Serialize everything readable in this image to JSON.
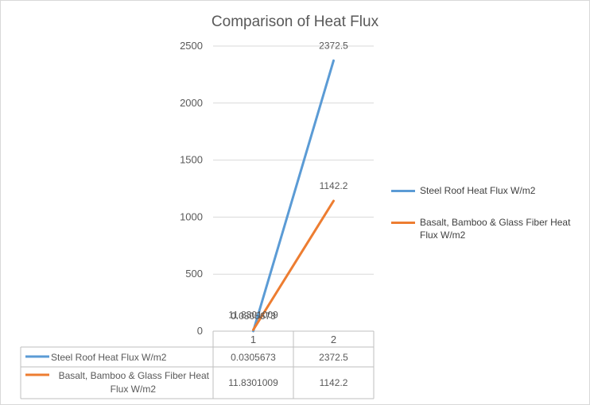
{
  "chart_data": {
    "type": "line",
    "title": "Comparison of Heat Flux",
    "categories": [
      "1",
      "2"
    ],
    "ylim": [
      0,
      2500
    ],
    "yticks": [
      0,
      500,
      1000,
      1500,
      2000,
      2500
    ],
    "grid": true,
    "legend_position": "right",
    "show_data_table": true,
    "series": [
      {
        "name": "Steel Roof Heat Flux W/m2",
        "color": "#5b9bd5",
        "values": [
          0.0305673,
          2372.5
        ],
        "labels": [
          "0.0305673",
          "2372.5"
        ]
      },
      {
        "name": "Basalt, Bamboo & Glass Fiber Heat Flux W/m2",
        "name_lines": [
          "Basalt, Bamboo & Glass Fiber Heat",
          "Flux W/m2"
        ],
        "color": "#ed7d31",
        "values": [
          11.8301009,
          1142.2
        ],
        "labels": [
          "11.8301009",
          "1142.2"
        ]
      }
    ]
  }
}
